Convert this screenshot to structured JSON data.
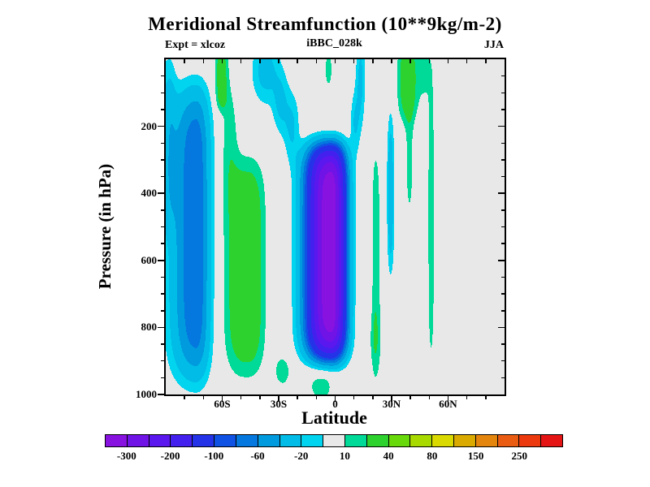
{
  "header": {
    "title": "Meridional Streamfunction (10**9kg/m-2)",
    "experiment": "Expt = xlcoz",
    "run": "iBBC_028k",
    "season": "JJA"
  },
  "chart_data": {
    "type": "filled_contour",
    "title": "Meridional Streamfunction (10**9kg/m-2)",
    "units": "10**9 kg/m-2",
    "xlabel": "Latitude",
    "ylabel": "Pressure (in hPa)",
    "x_range": [
      -90,
      90
    ],
    "y_range": [
      0,
      1000
    ],
    "y_axis_direction": "increasing-down",
    "x_ticks": [
      {
        "value": -60,
        "label": "60S"
      },
      {
        "value": -30,
        "label": "30S"
      },
      {
        "value": 0,
        "label": "0"
      },
      {
        "value": 30,
        "label": "30N"
      },
      {
        "value": 60,
        "label": "60N"
      }
    ],
    "x_minor_tick_step": 10,
    "y_ticks": [
      {
        "value": 200,
        "label": "200"
      },
      {
        "value": 400,
        "label": "400"
      },
      {
        "value": 600,
        "label": "600"
      },
      {
        "value": 800,
        "label": "800"
      },
      {
        "value": 1000,
        "label": "1000"
      }
    ],
    "y_minor_tick_step": 50,
    "grid": false,
    "plot_background": "#e8e8e8",
    "contour_levels": [
      -300,
      -250,
      -200,
      -150,
      -100,
      -80,
      -60,
      -40,
      -20,
      -10,
      10,
      20,
      40,
      60,
      80,
      100,
      150,
      200,
      250,
      300
    ],
    "band_colors": [
      "#8812e0",
      "#6f13e6",
      "#5a18ee",
      "#4420ee",
      "#2433e8",
      "#0f52e4",
      "#0478de",
      "#009ade",
      "#00bce6",
      "#00d4ee",
      "#e8e8e8",
      "#00da98",
      "#2ed22e",
      "#68d90a",
      "#a8da00",
      "#dada00",
      "#daaa00",
      "#e4860e",
      "#ea5c12",
      "#ec3a0e",
      "#e51515"
    ],
    "colorbar_labeled_levels": [
      -300,
      -200,
      -100,
      -60,
      -20,
      10,
      40,
      80,
      150,
      250
    ],
    "colorbar_position": "bottom",
    "field_components": [
      {
        "name": "hadley-cell",
        "A": -340,
        "lat": -2.5,
        "sxl": 11.5,
        "sxr": 7.5,
        "e1": 2.2,
        "p": 575,
        "sy": 310,
        "e2": 8
      },
      {
        "name": "south-polar-column",
        "A": -80,
        "lat": -74,
        "sxl": 12,
        "sxr": 7,
        "e1": 2,
        "p": 520,
        "sy": 420,
        "e2": 6
      },
      {
        "name": "south-polar-edge",
        "A": -22,
        "lat": -88,
        "sxl": 8,
        "sxr": 3.5,
        "e1": 2,
        "p": 250,
        "sy": 260,
        "e2": 4
      },
      {
        "name": "south-ferrel-column",
        "A": 38,
        "lat": -47,
        "sxl": 11,
        "sxr": 9,
        "e1": 2.5,
        "p": 620,
        "sy": 310,
        "e2": 5
      },
      {
        "name": "south-ferrel-top",
        "A": 32,
        "lat": -60.5,
        "sxl": 3.2,
        "sxr": 3.2,
        "e1": 2,
        "p": 55,
        "sy": 95,
        "e2": 4
      },
      {
        "name": "south-ferrel-bridge",
        "A": 16,
        "lat": -56,
        "sxl": 4.5,
        "sxr": 4.5,
        "e1": 2,
        "p": 230,
        "sy": 160,
        "e2": 2
      },
      {
        "name": "surface-return-south",
        "A": 15,
        "lat": -28,
        "sxl": 5,
        "sxr": 5,
        "e1": 2,
        "p": 930,
        "sy": 55,
        "e2": 2
      },
      {
        "name": "surface-return-equator",
        "A": 14,
        "lat": -7,
        "sxl": 9,
        "sxr": 7,
        "e1": 2,
        "p": 975,
        "sy": 60,
        "e2": 2
      },
      {
        "name": "funnel-top",
        "A": -27,
        "lat": -37,
        "sxl": 7,
        "sxr": 7,
        "e1": 2,
        "p": 35,
        "sy": 95,
        "e2": 2
      },
      {
        "name": "funnel-mid",
        "A": -22,
        "lat": -29,
        "sxl": 4,
        "sxr": 4,
        "e1": 2,
        "p": 130,
        "sy": 90,
        "e2": 2
      },
      {
        "name": "funnel-low",
        "A": -22,
        "lat": -23,
        "sxl": 4,
        "sxr": 4,
        "e1": 2,
        "p": 200,
        "sy": 100,
        "e2": 2
      },
      {
        "name": "equatorial-top-green",
        "A": 16,
        "lat": -3.5,
        "sxl": 2.2,
        "sxr": 2.2,
        "e1": 2,
        "p": 30,
        "sy": 60,
        "e2": 2
      },
      {
        "name": "north-flank-top",
        "A": -24,
        "lat": 13.5,
        "sxl": 2.5,
        "sxr": 2.5,
        "e1": 2,
        "p": 60,
        "sy": 140,
        "e2": 2
      },
      {
        "name": "north-flank-low",
        "A": -20,
        "lat": 10.5,
        "sxl": 2.5,
        "sxr": 2.5,
        "e1": 2,
        "p": 190,
        "sy": 90,
        "e2": 2
      },
      {
        "name": "subtropical-streak-30n",
        "A": -32,
        "lat": 29.5,
        "sxl": 1.8,
        "sxr": 1.8,
        "e1": 2,
        "p": 400,
        "sy": 230,
        "e2": 3
      },
      {
        "name": "tropical-streak-20n",
        "A": 17,
        "lat": 21.5,
        "sxl": 2.2,
        "sxr": 2.8,
        "e1": 2,
        "p": 610,
        "sy": 360,
        "e2": 4
      },
      {
        "name": "tropical-streak-20n-base",
        "A": 9,
        "lat": 21,
        "sxl": 3.5,
        "sxr": 3.5,
        "e1": 2,
        "p": 840,
        "sy": 90,
        "e2": 2
      },
      {
        "name": "north-midlat-green-top",
        "A": 34,
        "lat": 38,
        "sxl": 4.5,
        "sxr": 6,
        "e1": 2,
        "p": 60,
        "sy": 120,
        "e2": 3
      },
      {
        "name": "north-midlat-green-lobe",
        "A": 14,
        "lat": 39.5,
        "sxl": 2.5,
        "sxr": 2.5,
        "e1": 2,
        "p": 300,
        "sy": 220,
        "e2": 2
      },
      {
        "name": "north-midlat-green-streak",
        "A": 16,
        "lat": 51,
        "sxl": 2,
        "sxr": 2,
        "e1": 2,
        "p": 470,
        "sy": 470,
        "e2": 4
      },
      {
        "name": "north-midlat-green-bridge",
        "A": 14,
        "lat": 47.5,
        "sxl": 3,
        "sxr": 3,
        "e1": 2,
        "p": 40,
        "sy": 70,
        "e2": 2
      }
    ]
  }
}
